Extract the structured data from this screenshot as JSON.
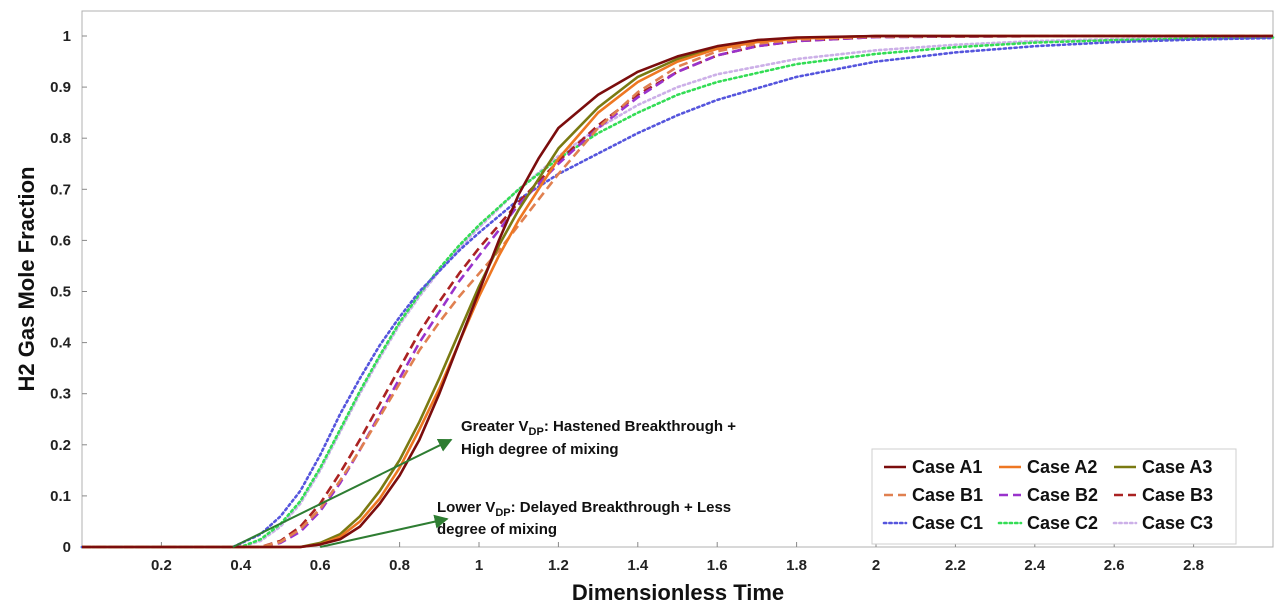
{
  "chart_data": {
    "type": "line",
    "title": "",
    "xlabel": "Dimensionless Time",
    "ylabel": "H2 Gas Mole Fraction",
    "xlim": [
      0,
      3
    ],
    "ylim": [
      0,
      1.05
    ],
    "x_ticks": [
      "0.2",
      "0.4",
      "0.6",
      "0.8",
      "1",
      "1.2",
      "1.4",
      "1.6",
      "1.8",
      "2",
      "2.2",
      "2.4",
      "2.6",
      "2.8"
    ],
    "y_ticks": [
      "0",
      "0.1",
      "0.2",
      "0.3",
      "0.4",
      "0.5",
      "0.6",
      "0.7",
      "0.8",
      "0.9",
      "1"
    ],
    "grid": false,
    "legend_position": "bottom-right",
    "series": [
      {
        "name": "Case A1",
        "color": "#7b0d0d",
        "dash": "solid",
        "x": [
          0.55,
          0.6,
          0.65,
          0.7,
          0.75,
          0.8,
          0.85,
          0.9,
          0.95,
          1.0,
          1.05,
          1.1,
          1.15,
          1.2,
          1.3,
          1.4,
          1.5,
          1.6,
          1.7,
          1.8,
          2.0,
          2.5,
          3.0
        ],
        "y": [
          0.0,
          0.005,
          0.015,
          0.04,
          0.085,
          0.14,
          0.21,
          0.3,
          0.4,
          0.5,
          0.6,
          0.69,
          0.76,
          0.82,
          0.885,
          0.93,
          0.96,
          0.98,
          0.992,
          0.997,
          1.0,
          1.0,
          1.0
        ]
      },
      {
        "name": "Case A2",
        "color": "#ee7722",
        "dash": "solid",
        "x": [
          0.55,
          0.6,
          0.65,
          0.7,
          0.75,
          0.8,
          0.85,
          0.9,
          0.95,
          1.0,
          1.05,
          1.1,
          1.2,
          1.3,
          1.4,
          1.5,
          1.6,
          1.7,
          1.8,
          2.0,
          2.5,
          3.0
        ],
        "y": [
          0.0,
          0.005,
          0.02,
          0.05,
          0.095,
          0.155,
          0.23,
          0.31,
          0.4,
          0.49,
          0.57,
          0.64,
          0.76,
          0.85,
          0.91,
          0.95,
          0.975,
          0.988,
          0.995,
          1.0,
          1.0,
          1.0
        ]
      },
      {
        "name": "Case A3",
        "color": "#7a7a12",
        "dash": "solid",
        "x": [
          0.55,
          0.6,
          0.65,
          0.7,
          0.75,
          0.8,
          0.85,
          0.9,
          0.95,
          1.0,
          1.05,
          1.1,
          1.2,
          1.3,
          1.4,
          1.5,
          1.6,
          1.7,
          1.8,
          2.0,
          2.5,
          3.0
        ],
        "y": [
          0.0,
          0.008,
          0.025,
          0.06,
          0.11,
          0.17,
          0.245,
          0.33,
          0.42,
          0.51,
          0.59,
          0.66,
          0.78,
          0.86,
          0.92,
          0.955,
          0.978,
          0.99,
          0.996,
          1.0,
          1.0,
          1.0
        ]
      },
      {
        "name": "Case B1",
        "color": "#e08050",
        "dash": "dashed",
        "x": [
          0.45,
          0.5,
          0.55,
          0.6,
          0.65,
          0.7,
          0.75,
          0.8,
          0.85,
          0.9,
          0.95,
          1.0,
          1.05,
          1.1,
          1.2,
          1.3,
          1.4,
          1.5,
          1.6,
          1.7,
          1.8,
          2.0,
          2.5,
          3.0
        ],
        "y": [
          0.0,
          0.01,
          0.035,
          0.075,
          0.13,
          0.19,
          0.255,
          0.32,
          0.385,
          0.44,
          0.49,
          0.535,
          0.58,
          0.63,
          0.73,
          0.82,
          0.89,
          0.94,
          0.97,
          0.985,
          0.993,
          0.999,
          1.0,
          1.0
        ]
      },
      {
        "name": "Case B2",
        "color": "#9933cc",
        "dash": "dashed",
        "x": [
          0.45,
          0.5,
          0.55,
          0.6,
          0.65,
          0.7,
          0.75,
          0.8,
          0.85,
          0.9,
          0.95,
          1.0,
          1.05,
          1.1,
          1.2,
          1.3,
          1.4,
          1.5,
          1.6,
          1.7,
          1.8,
          2.0,
          2.5,
          3.0
        ],
        "y": [
          0.0,
          0.008,
          0.03,
          0.07,
          0.125,
          0.19,
          0.26,
          0.33,
          0.4,
          0.46,
          0.52,
          0.57,
          0.62,
          0.67,
          0.75,
          0.82,
          0.88,
          0.93,
          0.962,
          0.98,
          0.99,
          0.998,
          1.0,
          1.0
        ]
      },
      {
        "name": "Case B3",
        "color": "#aa2222",
        "dash": "dashed",
        "x": [
          0.45,
          0.5,
          0.55,
          0.6,
          0.65,
          0.7,
          0.75,
          0.8,
          0.85,
          0.9,
          0.95,
          1.0,
          1.05,
          1.1,
          1.2,
          1.3,
          1.4,
          1.5,
          1.6,
          1.7,
          1.8,
          2.0,
          2.5,
          3.0
        ],
        "y": [
          0.0,
          0.012,
          0.04,
          0.085,
          0.145,
          0.21,
          0.28,
          0.35,
          0.42,
          0.48,
          0.535,
          0.585,
          0.63,
          0.675,
          0.755,
          0.825,
          0.885,
          0.93,
          0.962,
          0.98,
          0.99,
          0.998,
          1.0,
          1.0
        ]
      },
      {
        "name": "Case C1",
        "color": "#5555dd",
        "dash": "dotted",
        "x": [
          0.38,
          0.45,
          0.5,
          0.55,
          0.6,
          0.65,
          0.7,
          0.75,
          0.8,
          0.85,
          0.9,
          0.95,
          1.0,
          1.1,
          1.2,
          1.3,
          1.4,
          1.5,
          1.6,
          1.8,
          2.0,
          2.2,
          2.4,
          2.6,
          2.8,
          3.0
        ],
        "y": [
          0.0,
          0.025,
          0.06,
          0.11,
          0.18,
          0.26,
          0.33,
          0.395,
          0.45,
          0.5,
          0.54,
          0.58,
          0.615,
          0.68,
          0.73,
          0.77,
          0.81,
          0.845,
          0.875,
          0.92,
          0.95,
          0.968,
          0.98,
          0.988,
          0.993,
          0.996
        ]
      },
      {
        "name": "Case C2",
        "color": "#33dd55",
        "dash": "dotted",
        "x": [
          0.4,
          0.45,
          0.5,
          0.55,
          0.6,
          0.65,
          0.7,
          0.75,
          0.8,
          0.85,
          0.9,
          0.95,
          1.0,
          1.1,
          1.2,
          1.3,
          1.4,
          1.5,
          1.6,
          1.8,
          2.0,
          2.2,
          2.4,
          2.6,
          2.8,
          3.0
        ],
        "y": [
          0.0,
          0.015,
          0.045,
          0.09,
          0.155,
          0.23,
          0.305,
          0.375,
          0.44,
          0.495,
          0.545,
          0.59,
          0.63,
          0.7,
          0.76,
          0.81,
          0.85,
          0.885,
          0.91,
          0.945,
          0.965,
          0.978,
          0.987,
          0.992,
          0.995,
          0.997
        ]
      },
      {
        "name": "Case C3",
        "color": "#ccb0e8",
        "dash": "dotted",
        "x": [
          0.4,
          0.45,
          0.5,
          0.55,
          0.6,
          0.65,
          0.7,
          0.75,
          0.8,
          0.85,
          0.9,
          0.95,
          1.0,
          1.1,
          1.2,
          1.3,
          1.4,
          1.5,
          1.6,
          1.8,
          2.0,
          2.2,
          2.4,
          2.6,
          2.8,
          3.0
        ],
        "y": [
          0.0,
          0.012,
          0.04,
          0.085,
          0.15,
          0.225,
          0.3,
          0.37,
          0.435,
          0.49,
          0.54,
          0.585,
          0.625,
          0.7,
          0.765,
          0.82,
          0.865,
          0.9,
          0.925,
          0.955,
          0.972,
          0.983,
          0.99,
          0.994,
          0.996,
          0.998
        ]
      }
    ],
    "annotations": [
      {
        "id": "greater",
        "line1_prefix": "Greater V",
        "line1_sub": "DP",
        "line1_suffix": ":  Hastened Breakthrough +",
        "line2": "High degree of mixing",
        "arrow_from": [
          0.38,
          0.0
        ],
        "arrow_to": [
          0.93,
          0.21
        ]
      },
      {
        "id": "lower",
        "line1_prefix": "Lower V",
        "line1_sub": "DP",
        "line1_suffix": ":  Delayed Breakthrough + Less",
        "line2": "degree of mixing",
        "arrow_from": [
          0.6,
          0.0
        ],
        "arrow_to": [
          0.92,
          0.055
        ]
      }
    ]
  }
}
